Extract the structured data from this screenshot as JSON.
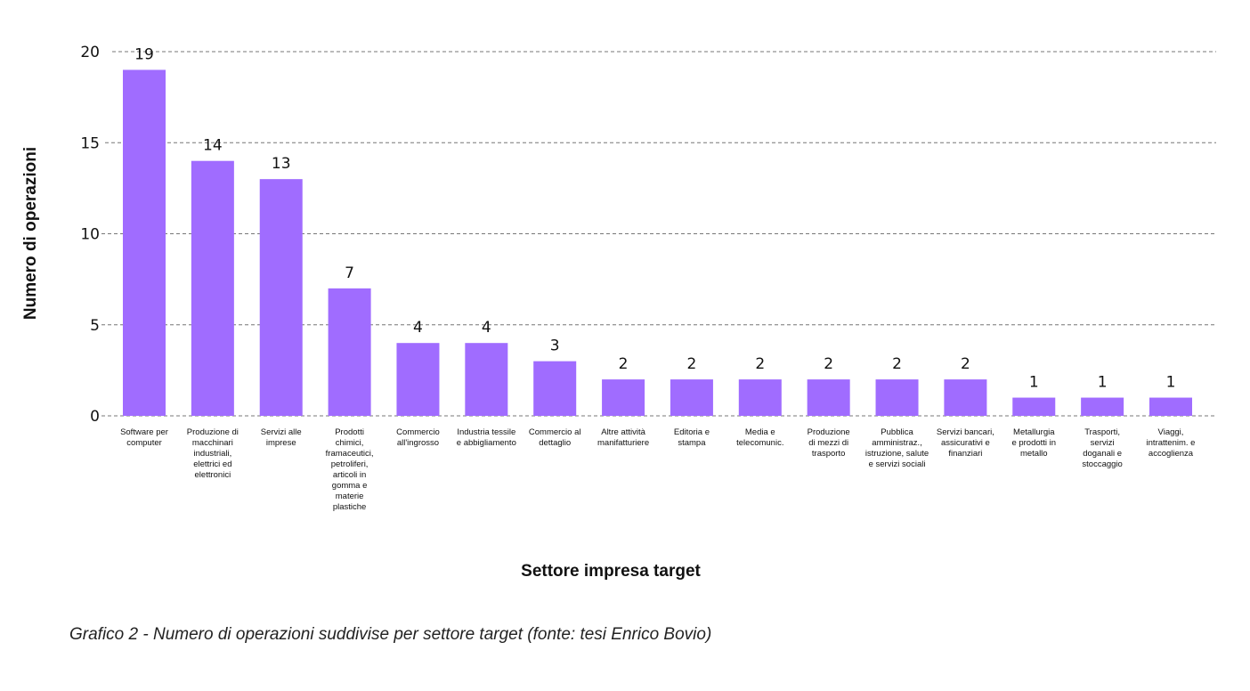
{
  "chart_data": {
    "type": "bar",
    "title": "",
    "xlabel": "Settore impresa target",
    "ylabel": "Numero di operazioni",
    "ylim": [
      0,
      20
    ],
    "yticks": [
      0,
      5,
      10,
      15,
      20
    ],
    "grid": true,
    "bar_color": "#a06cff",
    "categories": [
      [
        "Software per",
        "computer"
      ],
      [
        "Produzione di",
        "macchinari",
        "industriali,",
        "elettrici ed",
        "elettronici"
      ],
      [
        "Servizi alle",
        "imprese"
      ],
      [
        "Prodotti",
        "chimici,",
        "framaceutici,",
        "petroliferi,",
        "articoli in",
        "gomma e",
        "materie",
        "plastiche"
      ],
      [
        "Commercio",
        "all'ingrosso"
      ],
      [
        "Industria tessile",
        "e abbigliamento"
      ],
      [
        "Commercio al",
        "dettaglio"
      ],
      [
        "Altre attività",
        "manifatturiere"
      ],
      [
        "Editoria e",
        "stampa"
      ],
      [
        "Media e",
        "telecomunic."
      ],
      [
        "Produzione",
        "di mezzi di",
        "trasporto"
      ],
      [
        "Pubblica",
        "amministraz.,",
        "istruzione, salute",
        "e servizi sociali"
      ],
      [
        "Servizi bancari,",
        "assicurativi e",
        "finanziari"
      ],
      [
        "Metallurgia",
        "e prodotti in",
        "metallo"
      ],
      [
        "Trasporti,",
        "servizi",
        "doganali e",
        "stoccaggio"
      ],
      [
        "Viaggi,",
        "intrattenim. e",
        "accoglienza"
      ]
    ],
    "values": [
      19,
      14,
      13,
      7,
      4,
      4,
      3,
      2,
      2,
      2,
      2,
      2,
      2,
      1,
      1,
      1
    ]
  },
  "caption": "Grafico 2 - Numero di operazioni suddivise per settore target (fonte: tesi Enrico Bovio)"
}
